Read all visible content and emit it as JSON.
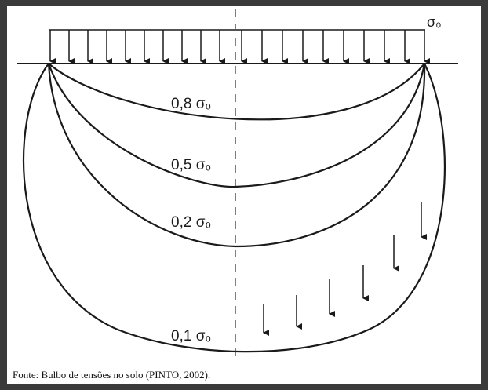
{
  "figure": {
    "load_label": "σ₀",
    "bulb_labels": [
      "0,8 σ₀",
      "0,5 σ₀",
      "0,2 σ₀",
      "0,1 σ₀"
    ],
    "caption": "Fonte: Bulbo de tensões no solo (PINTO, 2002)."
  },
  "colors": {
    "line": "#1a1a1a",
    "background": "#ffffff",
    "frame": "#3a3a3a"
  }
}
